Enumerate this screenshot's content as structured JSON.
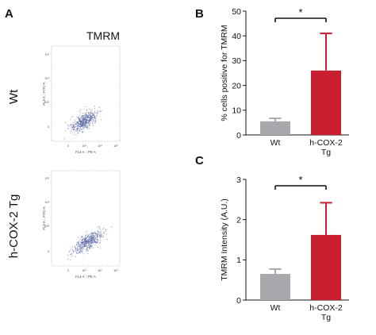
{
  "panels": {
    "a": {
      "letter": "A",
      "title": "TMRM"
    },
    "b": {
      "letter": "B"
    },
    "c": {
      "letter": "C"
    }
  },
  "flow": {
    "plots": [
      {
        "group": "Wt",
        "ylabel": "FL3-A :: FITC-A",
        "xlabel": "FL4-A :: PE-A",
        "yticks": [
          "10⁶",
          "10⁴",
          "10²",
          "0"
        ],
        "xticks": [
          "0",
          "10²",
          "10⁴",
          "10⁶"
        ]
      },
      {
        "group": "h-COX-2 Tg",
        "ylabel": "FL3-A :: FITC-A",
        "xlabel": "FL4-A :: PE-A",
        "yticks": [
          "10⁶",
          "10⁴",
          "10²",
          "0"
        ],
        "xticks": [
          "0",
          "10²",
          "10⁴",
          "10⁶"
        ]
      }
    ]
  },
  "colors": {
    "wt": "#a7a9ac",
    "tg": "#c8202f",
    "dots": "#4a5a9a"
  },
  "chart_data": [
    {
      "type": "bar",
      "panel": "B",
      "categories": [
        "Wt",
        "h-COX-2 Tg"
      ],
      "values": [
        5.5,
        26
      ],
      "errors": [
        1.2,
        15
      ],
      "ylabel": "% cells positive for TMRM",
      "ylim": [
        0,
        50
      ],
      "yticks": [
        0,
        10,
        20,
        30,
        40,
        50
      ],
      "significance": "*"
    },
    {
      "type": "bar",
      "panel": "C",
      "categories": [
        "Wt",
        "h-COX-2 Tg"
      ],
      "values": [
        0.65,
        1.62
      ],
      "errors": [
        0.12,
        0.8
      ],
      "ylabel": "TMRM Intensity (A.U.)",
      "ylim": [
        0,
        3
      ],
      "yticks": [
        0,
        1,
        2,
        3
      ],
      "significance": "*"
    }
  ]
}
